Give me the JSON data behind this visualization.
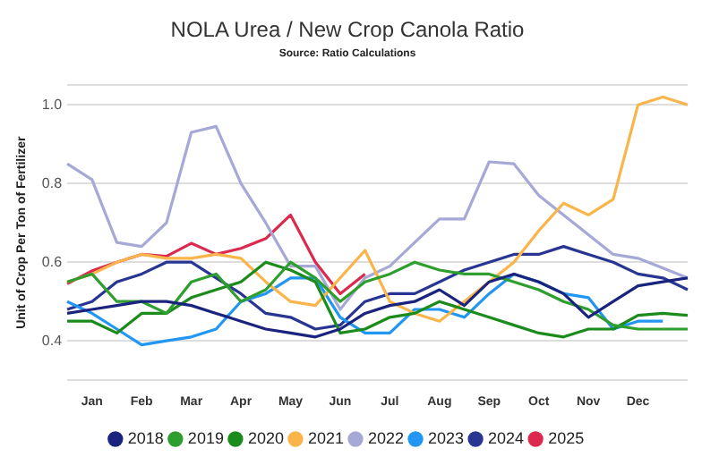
{
  "chart_data": {
    "type": "line",
    "title": "NOLA Urea / New Crop Canola Ratio",
    "subtitle": "Source: Ratio Calculations",
    "ylabel": "Unit of Crop Per Ton of Fertilizer",
    "categories": [
      null,
      "Jan",
      null,
      "Feb",
      null,
      "Mar",
      null,
      "Apr",
      null,
      "May",
      null,
      "Jun",
      null,
      "Jul",
      null,
      "Aug",
      null,
      "Sep",
      null,
      "Oct",
      null,
      "Nov",
      null,
      "Dec",
      null,
      null
    ],
    "ylim": [
      0.3,
      1.05
    ],
    "yticks": [
      {
        "value": 0.3,
        "label": null
      },
      0.4,
      0.6,
      0.8,
      {
        "value": 1,
        "label": "1.0"
      },
      {
        "value": 1.05,
        "label": null
      }
    ],
    "grid": "y",
    "legend": "bottom",
    "series": [
      {
        "name": "2018",
        "color": "#1a237e",
        "values": [
          0.47,
          0.48,
          0.49,
          0.5,
          0.5,
          0.49,
          0.47,
          0.45,
          0.43,
          0.42,
          0.41,
          0.43,
          0.47,
          0.49,
          0.5,
          0.53,
          0.49,
          0.55,
          0.57,
          0.55,
          0.52,
          0.46,
          0.5,
          0.54,
          0.55,
          0.56
        ]
      },
      {
        "name": "2019",
        "color": "#2e9e2e",
        "values": [
          0.55,
          0.57,
          0.5,
          0.5,
          0.47,
          0.55,
          0.57,
          0.5,
          0.53,
          0.6,
          0.56,
          0.5,
          0.55,
          0.57,
          0.6,
          0.58,
          0.57,
          0.57,
          0.55,
          0.53,
          0.5,
          0.48,
          0.44,
          0.43,
          0.43,
          0.43
        ]
      },
      {
        "name": "2020",
        "color": "#1b8c1b",
        "values": [
          0.45,
          0.45,
          0.42,
          0.47,
          0.47,
          0.51,
          0.53,
          0.55,
          0.6,
          0.58,
          0.55,
          0.42,
          0.43,
          0.46,
          0.47,
          0.5,
          0.48,
          0.46,
          0.44,
          0.42,
          0.41,
          0.43,
          0.43,
          0.465,
          0.47,
          0.465
        ]
      },
      {
        "name": "2021",
        "color": "#f9b44a",
        "values": [
          0.55,
          0.57,
          0.6,
          0.62,
          0.61,
          0.61,
          0.62,
          0.61,
          0.55,
          0.5,
          0.49,
          0.56,
          0.63,
          0.5,
          0.47,
          0.45,
          0.5,
          0.55,
          0.6,
          0.68,
          0.75,
          0.72,
          0.76,
          1.0,
          1.02,
          1.0
        ]
      },
      {
        "name": "2022",
        "color": "#a6a8d6",
        "values": [
          0.85,
          0.81,
          0.65,
          0.64,
          0.7,
          0.93,
          0.945,
          0.8,
          0.7,
          0.59,
          0.59,
          0.48,
          0.56,
          0.59,
          0.65,
          0.71,
          0.71,
          0.855,
          0.85,
          0.77,
          0.72,
          0.67,
          0.62,
          0.61,
          0.585,
          0.56
        ]
      },
      {
        "name": "2023",
        "color": "#2196f3",
        "values": [
          0.5,
          0.47,
          0.43,
          0.39,
          0.4,
          0.41,
          0.43,
          0.5,
          0.52,
          0.56,
          0.56,
          0.46,
          0.42,
          0.42,
          0.48,
          0.48,
          0.46,
          0.52,
          0.57,
          0.55,
          0.52,
          0.51,
          0.43,
          0.45,
          0.45,
          null
        ]
      },
      {
        "name": "2024",
        "color": "#283593",
        "values": [
          0.48,
          0.5,
          0.55,
          0.57,
          0.6,
          0.6,
          0.56,
          0.52,
          0.47,
          0.46,
          0.43,
          0.44,
          0.5,
          0.52,
          0.52,
          0.55,
          0.58,
          0.6,
          0.62,
          0.62,
          0.64,
          0.62,
          0.6,
          0.57,
          0.56,
          0.53
        ]
      },
      {
        "name": "2025",
        "color": "#dc2a4f",
        "values": [
          0.545,
          0.578,
          0.6,
          0.62,
          0.615,
          0.648,
          0.62,
          0.635,
          0.66,
          0.72,
          0.6,
          0.52,
          0.57,
          null,
          null,
          null,
          null,
          null,
          null,
          null,
          null,
          null,
          null,
          null,
          null,
          null
        ]
      }
    ]
  }
}
